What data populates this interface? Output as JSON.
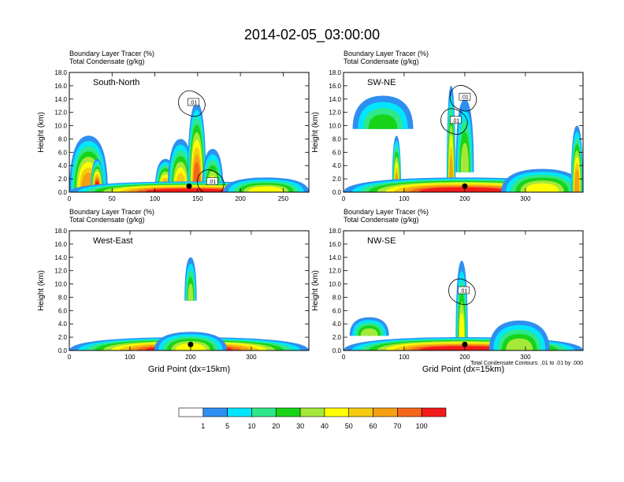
{
  "title": "2014-02-05_03:00:00",
  "colors": {
    "levels": [
      "#ffffff",
      "#2f8ff0",
      "#00e6ff",
      "#2fe88a",
      "#18d418",
      "#a6e83a",
      "#ffff00",
      "#f5cc10",
      "#f5a010",
      "#f5661a",
      "#f51a1a"
    ],
    "contour": "#000000",
    "marker": "#000000"
  },
  "chart_data": [
    {
      "type": "heatmap",
      "name": "south-north",
      "label": "South-North",
      "title_line1": "Boundary Layer Tracer    (%)",
      "title_line2": "Total Condensate    (g/kg)",
      "ylabel": "Height (km)",
      "xlabel": "",
      "xlim": [
        0,
        280
      ],
      "ylim": [
        0,
        18
      ],
      "xticks": [
        0,
        50,
        100,
        150,
        200,
        250
      ],
      "yticks": [
        "0.0",
        "2.0",
        "4.0",
        "6.0",
        "8.0",
        "10.0",
        "12.0",
        "14.0",
        "16.0",
        "18.0"
      ],
      "contour_labels": [
        {
          "x": 145,
          "y": 13.5,
          "text": ".01"
        },
        {
          "x": 167,
          "y": 1.6,
          "text": ".01"
        }
      ],
      "marker_x": 140,
      "tracer_blobs": [
        {
          "x": [
            0,
            45
          ],
          "y": [
            0,
            8.5
          ],
          "peak": 60
        },
        {
          "x": [
            25,
            40
          ],
          "y": [
            0,
            5
          ],
          "peak": 100
        },
        {
          "x": [
            100,
            125
          ],
          "y": [
            0,
            5
          ],
          "peak": 60
        },
        {
          "x": [
            115,
            145
          ],
          "y": [
            0,
            8
          ],
          "peak": 50
        },
        {
          "x": [
            138,
            160
          ],
          "y": [
            0,
            13.5
          ],
          "peak": 70
        },
        {
          "x": [
            155,
            180
          ],
          "y": [
            0,
            6.5
          ],
          "peak": 40
        },
        {
          "x": [
            0,
            280
          ],
          "y": [
            0,
            1.6
          ],
          "peak": 100
        },
        {
          "x": [
            180,
            280
          ],
          "y": [
            0,
            2.2
          ],
          "peak": 40
        }
      ]
    },
    {
      "type": "heatmap",
      "name": "sw-ne",
      "label": "SW-NE",
      "title_line1": "Boundary Layer Tracer    (%)",
      "title_line2": "Total Condensate    (g/kg)",
      "ylabel": "Height (km)",
      "xlabel": "",
      "xlim": [
        0,
        395
      ],
      "ylim": [
        0,
        18
      ],
      "xticks": [
        0,
        100,
        200,
        300
      ],
      "yticks": [
        "0.0",
        "2.0",
        "4.0",
        "6.0",
        "8.0",
        "10.0",
        "12.0",
        "14.0",
        "16.0",
        "18.0"
      ],
      "contour_labels": [
        {
          "x": 200,
          "y": 14.3,
          "text": ".01"
        },
        {
          "x": 185,
          "y": 10.8,
          "text": ".01"
        }
      ],
      "marker_x": 200,
      "tracer_blobs": [
        {
          "x": [
            15,
            115
          ],
          "y": [
            9.5,
            14.5
          ],
          "peak": 20
        },
        {
          "x": [
            80,
            95
          ],
          "y": [
            0,
            8.5
          ],
          "peak": 60
        },
        {
          "x": [
            170,
            185
          ],
          "y": [
            0,
            16
          ],
          "peak": 60
        },
        {
          "x": [
            185,
            215
          ],
          "y": [
            3,
            14
          ],
          "peak": 30
        },
        {
          "x": [
            0,
            395
          ],
          "y": [
            0,
            2.2
          ],
          "peak": 100
        },
        {
          "x": [
            260,
            395
          ],
          "y": [
            0,
            3.5
          ],
          "peak": 40
        },
        {
          "x": [
            375,
            395
          ],
          "y": [
            0,
            10
          ],
          "peak": 60
        }
      ]
    },
    {
      "type": "heatmap",
      "name": "west-east",
      "label": "West-East",
      "title_line1": "Boundary Layer Tracer    (%)",
      "title_line2": "Total Condensate    (g/kg)",
      "ylabel": "Height (km)",
      "xlabel": "Grid Point (dx=15km)",
      "xlim": [
        0,
        395
      ],
      "ylim": [
        0,
        18
      ],
      "xticks": [
        0,
        100,
        200,
        300
      ],
      "yticks": [
        "0.0",
        "2.0",
        "4.0",
        "6.0",
        "8.0",
        "10.0",
        "12.0",
        "14.0",
        "16.0",
        "18.0"
      ],
      "contour_labels": [],
      "marker_x": 200,
      "tracer_blobs": [
        {
          "x": [
            190,
            210
          ],
          "y": [
            7.5,
            14
          ],
          "peak": 30
        },
        {
          "x": [
            0,
            395
          ],
          "y": [
            0,
            2
          ],
          "peak": 100
        },
        {
          "x": [
            140,
            260
          ],
          "y": [
            0,
            2.8
          ],
          "peak": 40
        }
      ]
    },
    {
      "type": "heatmap",
      "name": "nw-se",
      "label": "NW-SE",
      "title_line1": "Boundary Layer Tracer    (%)",
      "title_line2": "Total Condensate    (g/kg)",
      "ylabel": "Height (km)",
      "xlabel": "Grid Point (dx=15km)",
      "xlim": [
        0,
        395
      ],
      "ylim": [
        0,
        18
      ],
      "xticks": [
        0,
        100,
        200,
        300
      ],
      "yticks": [
        "0.0",
        "2.0",
        "4.0",
        "6.0",
        "8.0",
        "10.0",
        "12.0",
        "14.0",
        "16.0",
        "18.0"
      ],
      "contour_labels": [
        {
          "x": 198,
          "y": 9,
          "text": ".01"
        }
      ],
      "marker_x": 200,
      "footnote": "Total Condensate Contours: .01 to .01 by .000",
      "tracer_blobs": [
        {
          "x": [
            10,
            75
          ],
          "y": [
            2.2,
            5
          ],
          "peak": 30
        },
        {
          "x": [
            185,
            205
          ],
          "y": [
            1,
            13.5
          ],
          "peak": 40
        },
        {
          "x": [
            0,
            395
          ],
          "y": [
            0,
            2
          ],
          "peak": 100
        },
        {
          "x": [
            240,
            340
          ],
          "y": [
            0,
            4.5
          ],
          "peak": 30
        }
      ]
    }
  ],
  "colorbar": {
    "labels": [
      "1",
      "5",
      "10",
      "20",
      "30",
      "40",
      "50",
      "60",
      "70",
      "100"
    ]
  }
}
